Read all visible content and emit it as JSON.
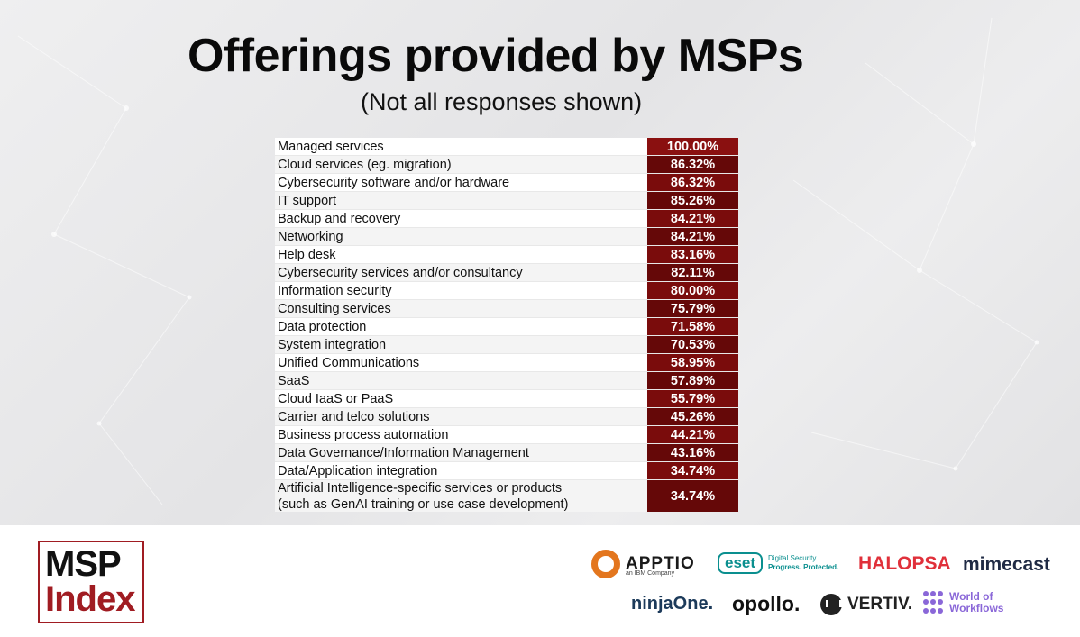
{
  "title": "Offerings provided by MSPs",
  "subtitle": "(Not all responses shown)",
  "rows": [
    {
      "label": "Managed services",
      "value": "100.00%"
    },
    {
      "label": "Cloud services (eg. migration)",
      "value": "86.32%"
    },
    {
      "label": "Cybersecurity software and/or hardware",
      "value": "86.32%"
    },
    {
      "label": "IT support",
      "value": "85.26%"
    },
    {
      "label": "Backup and recovery",
      "value": "84.21%"
    },
    {
      "label": "Networking",
      "value": "84.21%"
    },
    {
      "label": "Help desk",
      "value": "83.16%"
    },
    {
      "label": "Cybersecurity services and/or consultancy",
      "value": "82.11%"
    },
    {
      "label": "Information security",
      "value": "80.00%"
    },
    {
      "label": "Consulting services",
      "value": "75.79%"
    },
    {
      "label": "Data protection",
      "value": "71.58%"
    },
    {
      "label": "System integration",
      "value": "70.53%"
    },
    {
      "label": "Unified Communications",
      "value": "58.95%"
    },
    {
      "label": "SaaS",
      "value": "57.89%"
    },
    {
      "label": "Cloud IaaS or PaaS",
      "value": "55.79%"
    },
    {
      "label": "Carrier and telco solutions",
      "value": "45.26%"
    },
    {
      "label": "Business process automation",
      "value": "44.21%"
    },
    {
      "label": "Data Governance/Information Management",
      "value": "43.16%"
    },
    {
      "label": "Data/Application integration",
      "value": "34.74%"
    },
    {
      "label": "Artificial Intelligence-specific services or products",
      "label2": "(such as GenAI training or use case development)",
      "value": "34.74%"
    }
  ],
  "logo": {
    "line1": "MSP",
    "line2": "Index"
  },
  "sponsors": {
    "apptio": "APPTIO",
    "apptio_sub": "an IBM Company",
    "eset": "eset",
    "eset_tag1": "Digital Security",
    "eset_tag2": "Progress. Protected.",
    "halopsa": "HALOPSA",
    "mimecast": "mimecast",
    "ninjaone": "ninjaOne.",
    "opollo": "opollo.",
    "vertiv": "VERTIV.",
    "wow1": "World of",
    "wow2": "Workflows"
  },
  "colors": {
    "value_cell": "#7a0c0c",
    "brand_red": "#a01c22"
  }
}
